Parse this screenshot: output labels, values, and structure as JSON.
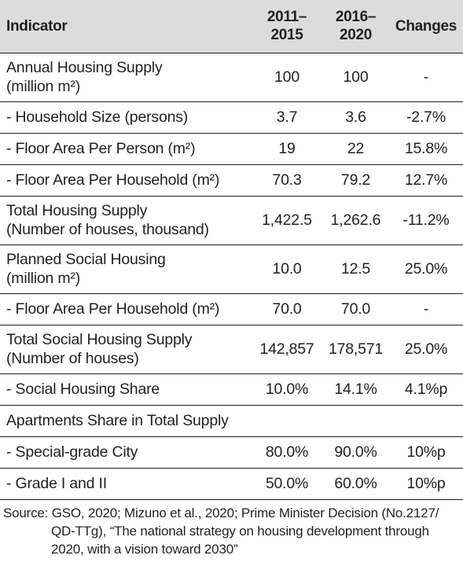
{
  "table": {
    "headers": {
      "indicator": "Indicator",
      "period1_line1": "2011–",
      "period1_line2": "2015",
      "period2_line1": "2016–",
      "period2_line2": "2020",
      "changes": "Changes"
    },
    "rows": [
      {
        "label1": "Annual Housing Supply",
        "label2": "(million m²)",
        "v1": "100",
        "v2": "100",
        "change": "-"
      },
      {
        "label1": "- Household Size (persons)",
        "label2": "",
        "v1": "3.7",
        "v2": "3.6",
        "change": "-2.7%"
      },
      {
        "label1": "- Floor Area Per Person (m²)",
        "label2": "",
        "v1": "19",
        "v2": "22",
        "change": "15.8%"
      },
      {
        "label1": "- Floor Area Per Household (m²)",
        "label2": "",
        "v1": "70.3",
        "v2": "79.2",
        "change": "12.7%"
      },
      {
        "label1": "Total Housing Supply",
        "label2": "(Number of houses, thousand)",
        "v1": "1,422.5",
        "v2": "1,262.6",
        "change": "-11.2%"
      },
      {
        "label1": "Planned Social Housing",
        "label2": "(million m²)",
        "v1": "10.0",
        "v2": "12.5",
        "change": "25.0%"
      },
      {
        "label1": "- Floor Area Per Household (m²)",
        "label2": "",
        "v1": "70.0",
        "v2": "70.0",
        "change": "-"
      },
      {
        "label1": "Total Social Housing Supply",
        "label2": "(Number of houses)",
        "v1": "142,857",
        "v2": "178,571",
        "change": "25.0%"
      },
      {
        "label1": "- Social Housing Share",
        "label2": "",
        "v1": "10.0%",
        "v2": "14.1%",
        "change": "4.1%p"
      },
      {
        "label1": "Apartments Share in Total Supply",
        "label2": "",
        "v1": "",
        "v2": "",
        "change": ""
      },
      {
        "label1": "- Special-grade City",
        "label2": "",
        "v1": "80.0%",
        "v2": "90.0%",
        "change": "10%p"
      },
      {
        "label1": "- Grade I and II",
        "label2": "",
        "v1": "50.0%",
        "v2": "60.0%",
        "change": "10%p"
      }
    ]
  },
  "source": {
    "line1": "Source: GSO, 2020; Mizuno et al., 2020; Prime Minister Decision (No.2127/",
    "line2": "QD-TTg), “The national strategy on housing development through",
    "line3": "2020, with a vision toward 2030”"
  }
}
